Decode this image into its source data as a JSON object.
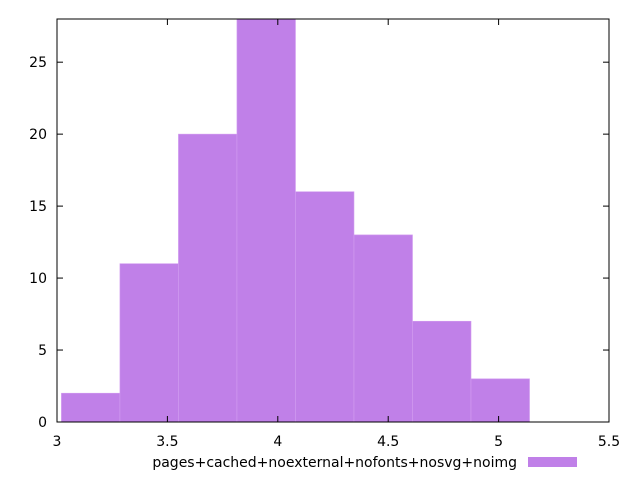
{
  "chart_data": {
    "type": "bar",
    "title": "",
    "xlabel": "",
    "ylabel": "",
    "xlim": [
      3,
      5.5
    ],
    "ylim": [
      0,
      28
    ],
    "x_ticks": [
      "3",
      "3.5",
      "4",
      "4.5",
      "5",
      "5.5"
    ],
    "y_ticks": [
      "0",
      "5",
      "10",
      "15",
      "20",
      "25"
    ],
    "grid": false,
    "legend_position": "bottom-center",
    "series": [
      {
        "name": "pages+cached+noexternal+nofonts+nosvg+noimg",
        "color": "#c080e8",
        "bins": [
          {
            "x0": 3.02,
            "x1": 3.285,
            "value": 2
          },
          {
            "x0": 3.285,
            "x1": 3.55,
            "value": 11
          },
          {
            "x0": 3.55,
            "x1": 3.815,
            "value": 20
          },
          {
            "x0": 3.815,
            "x1": 4.08,
            "value": 28
          },
          {
            "x0": 4.08,
            "x1": 4.345,
            "value": 16
          },
          {
            "x0": 4.345,
            "x1": 4.61,
            "value": 13
          },
          {
            "x0": 4.61,
            "x1": 4.875,
            "value": 7
          },
          {
            "x0": 4.875,
            "x1": 5.14,
            "value": 3
          }
        ]
      }
    ]
  }
}
